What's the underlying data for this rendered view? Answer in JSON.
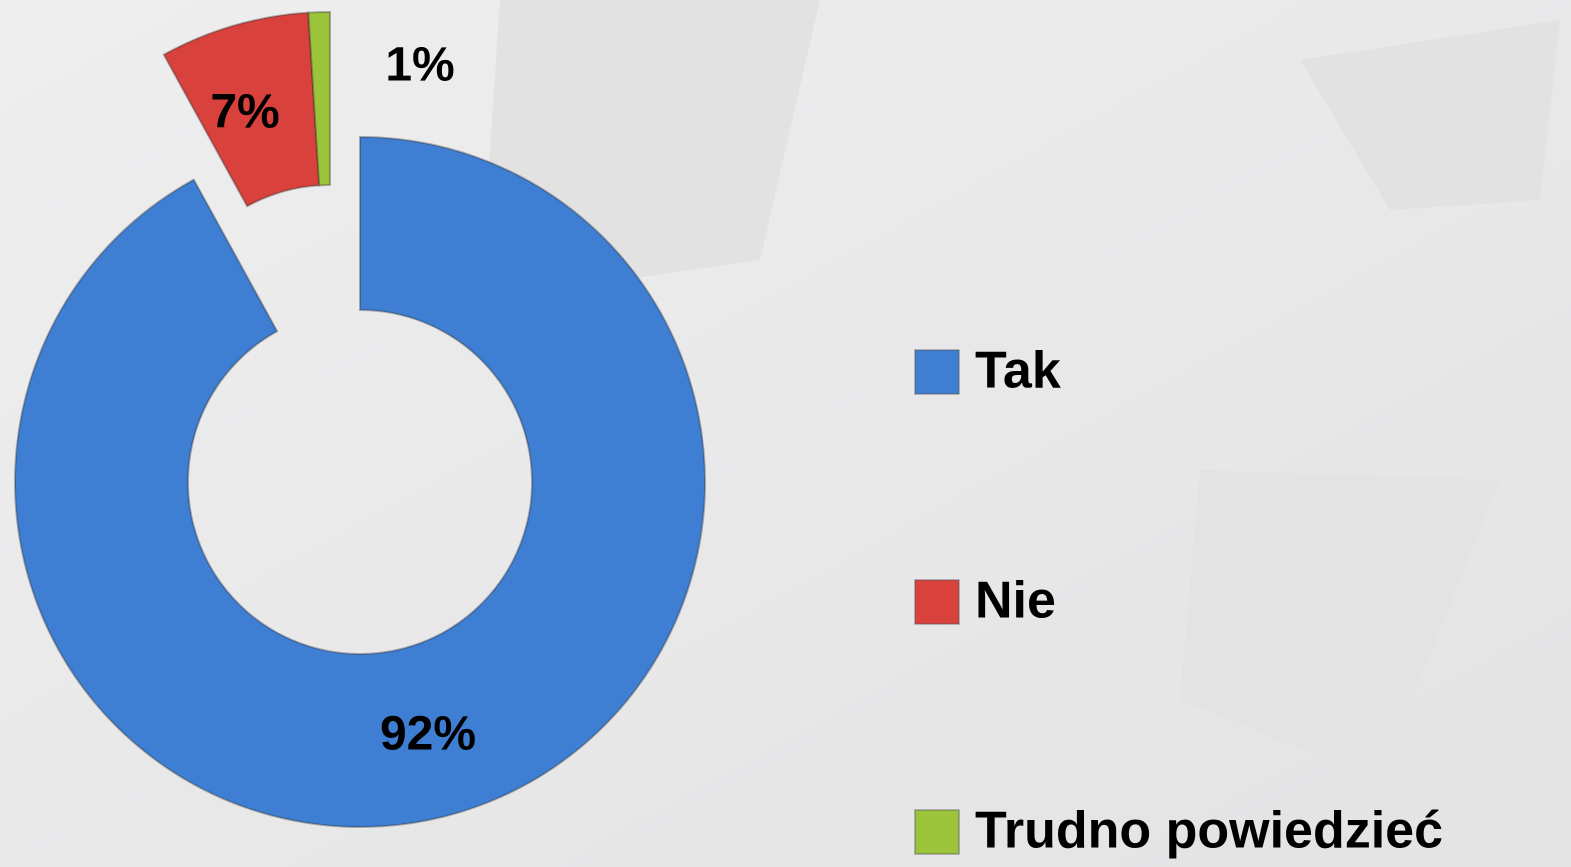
{
  "chart_data": {
    "type": "donut",
    "categories": [
      "Tak",
      "Nie",
      "Trudno powiedzieć"
    ],
    "values": [
      92,
      7,
      1
    ],
    "value_labels": [
      "92%",
      "7%",
      "1%"
    ],
    "colors": [
      "#3f7fd3",
      "#d8413c",
      "#9cc43a"
    ],
    "legend": "right"
  }
}
